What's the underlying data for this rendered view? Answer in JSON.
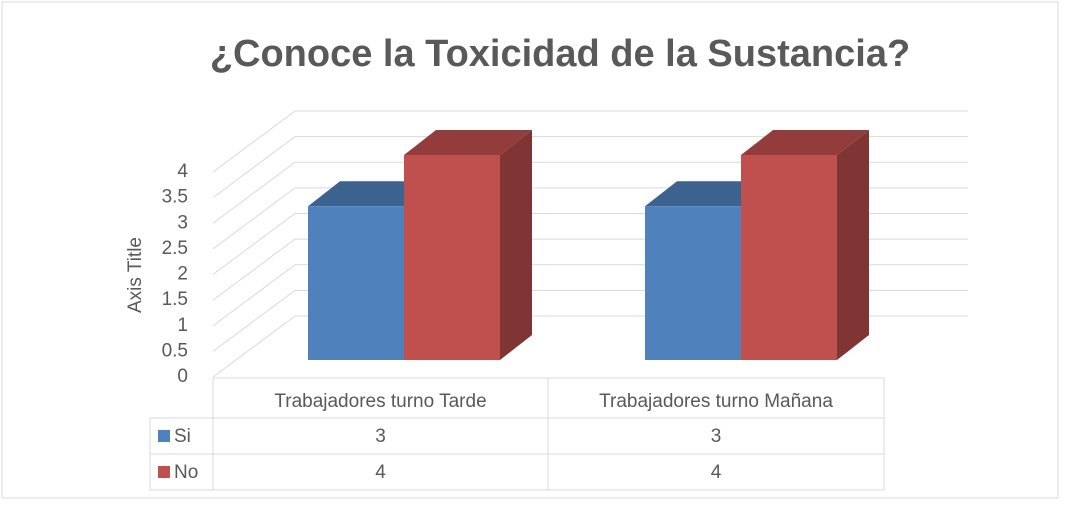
{
  "chart_data": {
    "type": "bar3d",
    "title": "¿Conoce la Toxicidad de la Sustancia?",
    "y_label": "Axis Title",
    "categories": [
      "Trabajadores turno Tarde",
      "Trabajadores turno Mañana"
    ],
    "series": [
      {
        "name": "Si",
        "color": "#4f81bd",
        "values": [
          3,
          3
        ]
      },
      {
        "name": "No",
        "color": "#c0504d",
        "values": [
          4,
          4
        ]
      }
    ],
    "ylim": [
      0,
      4
    ],
    "yticks": [
      0,
      0.5,
      1,
      1.5,
      2,
      2.5,
      3,
      3.5,
      4
    ],
    "grid": true,
    "data_table": true
  }
}
